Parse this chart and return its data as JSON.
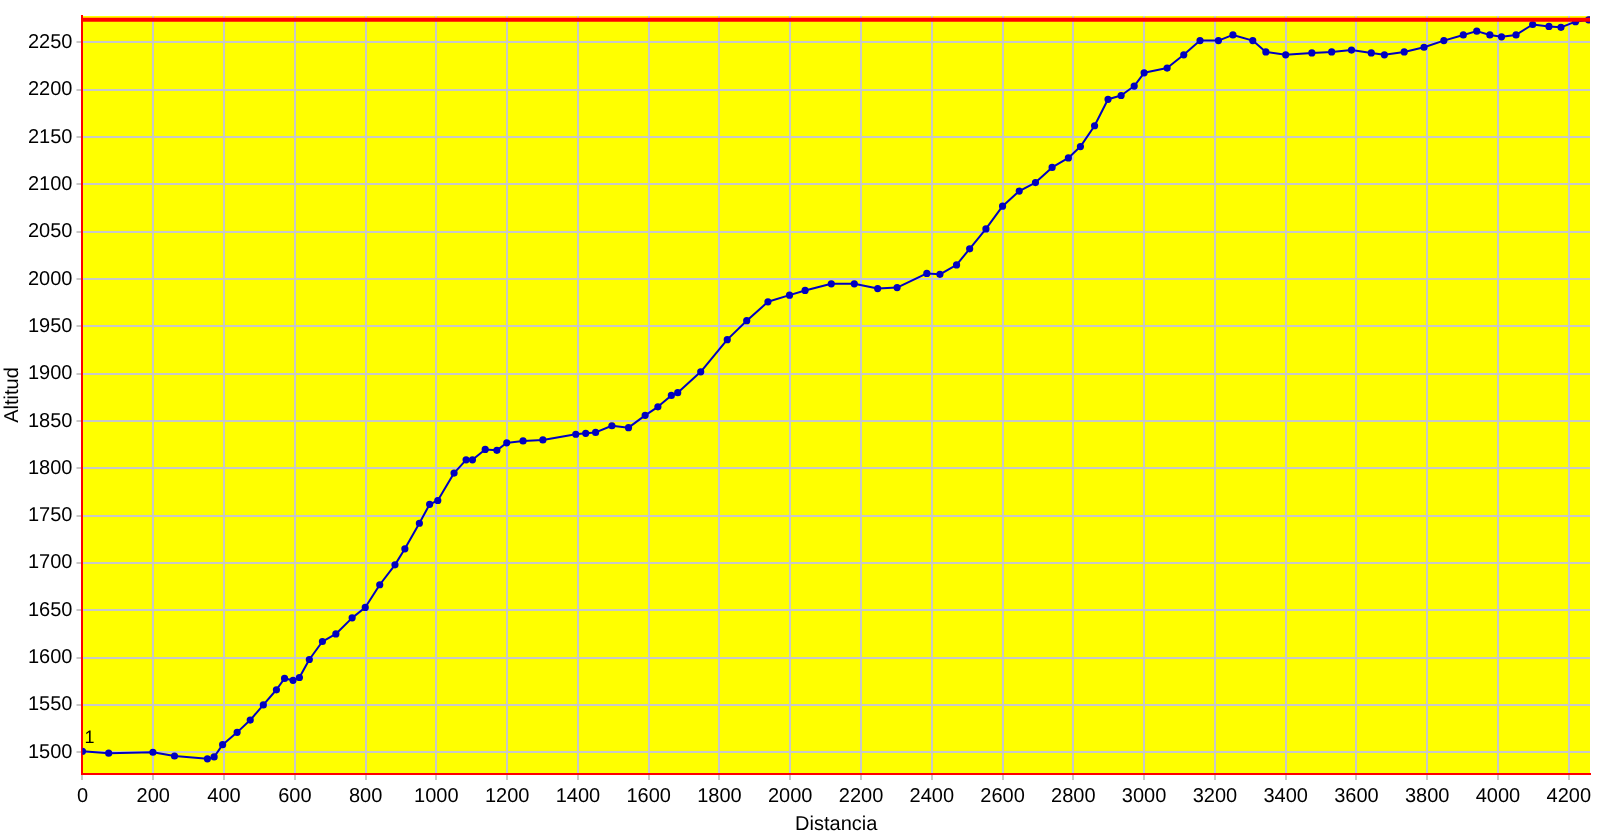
{
  "chart_data": {
    "type": "line",
    "xlabel": "Distancia",
    "ylabel": "Altitud",
    "xlim": [
      0,
      4260
    ],
    "ylim": [
      1477,
      2278
    ],
    "xticks": [
      0,
      200,
      400,
      600,
      800,
      1000,
      1200,
      1400,
      1600,
      1800,
      2000,
      2200,
      2400,
      2600,
      2800,
      3000,
      3200,
      3400,
      3600,
      3800,
      4000,
      4200
    ],
    "yticks": [
      1500,
      1550,
      1600,
      1650,
      1700,
      1750,
      1800,
      1850,
      1900,
      1950,
      2000,
      2050,
      2100,
      2150,
      2200,
      2250
    ],
    "grid": true,
    "legend": false,
    "marker": "circle",
    "line_style": "solid",
    "ref_lines": [
      {
        "axis": "y",
        "value": 2274,
        "color": "#ff0000"
      }
    ],
    "annotations": [
      {
        "text": "1",
        "x": 0,
        "y": 1501
      }
    ],
    "series": [
      {
        "color": "#0000c0",
        "x": [
          0,
          74,
          199,
          260,
          353,
          372,
          396,
          437,
          474,
          511,
          548,
          571,
          595,
          613,
          641,
          678,
          716,
          762,
          799,
          840,
          883,
          911,
          952,
          981,
          1004,
          1050,
          1084,
          1102,
          1138,
          1171,
          1199,
          1245,
          1301,
          1394,
          1422,
          1450,
          1496,
          1543,
          1590,
          1626,
          1664,
          1682,
          1747,
          1822,
          1877,
          1937,
          1998,
          2042,
          2116,
          2181,
          2247,
          2302,
          2386,
          2423,
          2470,
          2507,
          2553,
          2600,
          2647,
          2693,
          2740,
          2786,
          2820,
          2860,
          2898,
          2935,
          2972,
          3000,
          3065,
          3112,
          3158,
          3210,
          3251,
          3307,
          3344,
          3400,
          3474,
          3530,
          3586,
          3642,
          3679,
          3735,
          3791,
          3847,
          3902,
          3940,
          3977,
          4010,
          4051,
          4098,
          4144,
          4178,
          4219,
          4256
        ],
        "values": [
          1501,
          1499,
          1500,
          1496,
          1493,
          1495,
          1508,
          1521,
          1534,
          1550,
          1566,
          1578,
          1576,
          1579,
          1598,
          1617,
          1625,
          1642,
          1653,
          1677,
          1698,
          1715,
          1742,
          1762,
          1766,
          1795,
          1809,
          1809,
          1820,
          1819,
          1827,
          1829,
          1830,
          1836,
          1837,
          1838,
          1845,
          1843,
          1856,
          1865,
          1877,
          1880,
          1902,
          1936,
          1956,
          1976,
          1983,
          1988,
          1995,
          1995,
          1990,
          1991,
          2006,
          2005,
          2015,
          2032,
          2053,
          2077,
          2093,
          2102,
          2118,
          2128,
          2140,
          2162,
          2190,
          2194,
          2204,
          2218,
          2223,
          2237,
          2252,
          2252,
          2258,
          2252,
          2240,
          2237,
          2239,
          2240,
          2242,
          2239,
          2237,
          2240,
          2245,
          2252,
          2258,
          2262,
          2258,
          2256,
          2258,
          2269,
          2267,
          2266,
          2272,
          2274
        ]
      }
    ]
  }
}
